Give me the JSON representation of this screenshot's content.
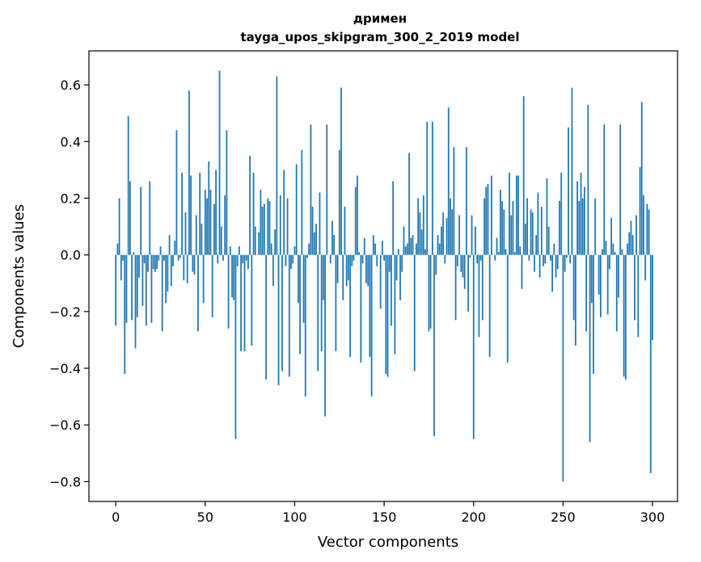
{
  "chart_data": {
    "type": "bar",
    "title": "дримен",
    "subtitle": "tayga_upos_skipgram_300_2_2019 model",
    "xlabel": "Vector components",
    "ylabel": "Components values",
    "xlim": [
      -15,
      314
    ],
    "ylim": [
      -0.87,
      0.72
    ],
    "xticks": [
      0,
      50,
      100,
      150,
      200,
      250,
      300
    ],
    "xtick_labels": [
      "0",
      "50",
      "100",
      "150",
      "200",
      "250",
      "300"
    ],
    "yticks": [
      -0.8,
      -0.6,
      -0.4,
      -0.2,
      0.0,
      0.2,
      0.4,
      0.6
    ],
    "ytick_labels": [
      "−0.8",
      "−0.6",
      "−0.4",
      "−0.2",
      "0.0",
      "0.2",
      "0.4",
      "0.6"
    ],
    "grid": false,
    "bar_color": "#1f77b4",
    "values": [
      -0.25,
      0.04,
      0.2,
      -0.09,
      -0.02,
      -0.42,
      -0.24,
      0.49,
      0.26,
      -0.23,
      0.01,
      -0.33,
      -0.22,
      -0.08,
      0.24,
      -0.18,
      -0.03,
      -0.25,
      -0.06,
      0.26,
      -0.24,
      -0.05,
      -0.06,
      -0.05,
      -0.02,
      0.03,
      -0.27,
      -0.02,
      -0.17,
      -0.13,
      0.07,
      -0.11,
      -0.04,
      0.05,
      0.44,
      -0.02,
      -0.01,
      0.29,
      -0.09,
      0.15,
      -0.1,
      0.58,
      0.28,
      -0.06,
      -0.07,
      0.14,
      -0.27,
      0.29,
      0.11,
      -0.17,
      0.23,
      0.2,
      0.33,
      0.23,
      -0.22,
      0.18,
      0.3,
      -0.03,
      0.65,
      0.1,
      -0.02,
      0.21,
      0.44,
      -0.26,
      0.03,
      -0.15,
      -0.16,
      -0.65,
      -0.04,
      0.03,
      -0.34,
      -0.03,
      -0.34,
      -0.02,
      -0.05,
      0.35,
      -0.32,
      0.29,
      0.1,
      0.0,
      0.08,
      0.23,
      0.17,
      0.18,
      -0.44,
      0.2,
      0.19,
      0.04,
      -0.11,
      0.09,
      0.63,
      -0.46,
      0.21,
      -0.41,
      0.3,
      -0.04,
      0.2,
      -0.43,
      -0.05,
      -0.03,
      0.03,
      0.32,
      -0.17,
      -0.35,
      0.37,
      -0.24,
      -0.5,
      -0.01,
      0.04,
      0.46,
      0.17,
      0.08,
      0.11,
      -0.41,
      0.22,
      -0.34,
      -0.16,
      -0.57,
      0.46,
      0.0,
      -0.03,
      0.12,
      0.07,
      -0.34,
      -0.1,
      0.37,
      0.59,
      -0.16,
      0.17,
      -0.11,
      -0.09,
      -0.36,
      -0.04,
      -0.02,
      0.24,
      0.28,
      0.01,
      -0.38,
      -0.03,
      0.06,
      -0.1,
      -0.11,
      -0.36,
      -0.5,
      0.07,
      0.04,
      -0.04,
      0.0,
      -0.19,
      0.05,
      -0.02,
      -0.42,
      -0.43,
      -0.06,
      -0.25,
      0.26,
      -0.35,
      -0.09,
      0.02,
      -0.16,
      -0.06,
      0.1,
      0.03,
      0.04,
      0.36,
      0.06,
      0.07,
      -0.41,
      0.04,
      0.2,
      0.15,
      0.09,
      0.21,
      0.02,
      0.47,
      -0.27,
      -0.26,
      0.47,
      -0.64,
      -0.07,
      0.07,
      0.04,
      0.1,
      0.15,
      -0.03,
      0.13,
      0.52,
      0.2,
      0.16,
      0.38,
      -0.23,
      -0.04,
      0.14,
      -0.06,
      -0.08,
      -0.12,
      0.38,
      -0.2,
      -0.01,
      0.14,
      -0.65,
      0.1,
      -0.03,
      -0.29,
      -0.02,
      -0.23,
      0.2,
      0.24,
      0.25,
      -0.36,
      0.28,
      0.0,
      -0.02,
      0.06,
      0.01,
      0.23,
      0.19,
      0.16,
      0.02,
      -0.38,
      0.29,
      0.14,
      0.19,
      0.01,
      0.28,
      0.28,
      0.03,
      -0.12,
      0.56,
      0.11,
      0.2,
      -0.02,
      0.16,
      0.15,
      -0.06,
      0.07,
      0.22,
      -0.08,
      0.17,
      -0.04,
      -0.03,
      0.27,
      0.1,
      -0.02,
      -0.13,
      0.04,
      -0.08,
      -0.05,
      0.19,
      0.29,
      -0.8,
      -0.06,
      -0.01,
      0.45,
      -0.03,
      0.59,
      -0.23,
      -0.32,
      0.26,
      0.19,
      0.29,
      0.2,
      0.24,
      -0.27,
      0.53,
      -0.66,
      -0.17,
      -0.42,
      0.2,
      0.0,
      -0.14,
      -0.22,
      0.02,
      0.46,
      0.05,
      -0.21,
      -0.05,
      0.13,
      0.04,
      0.01,
      -0.27,
      -0.15,
      0.46,
      0.02,
      -0.43,
      -0.44,
      0.04,
      0.08,
      0.12,
      0.07,
      -0.23,
      0.14,
      -0.29,
      0.31,
      0.54,
      0.21,
      -0.09,
      0.18,
      0.16,
      -0.77,
      -0.3
    ]
  }
}
